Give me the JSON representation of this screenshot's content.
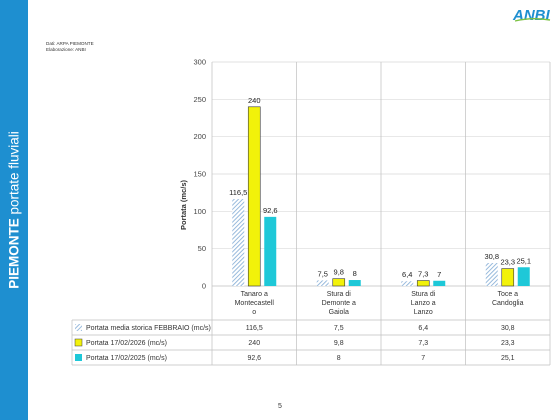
{
  "sidebar": {
    "title_bold": "PIEMONTE",
    "title_rest": "portate fluviali"
  },
  "source_note": {
    "line1": "Dati: ARPA PIEMONTE",
    "line2": "Elaborazione: ANBI"
  },
  "logo": {
    "text": "ANBI"
  },
  "page_number": "5",
  "colors": {
    "sidebar": "#1e8fd0",
    "historic": "#8db3d9",
    "y2026": "#f2f20a",
    "y2025": "#1ec8d8"
  },
  "chart_data": {
    "type": "bar",
    "title": "",
    "xlabel": "",
    "ylabel": "Portata (mc/s)",
    "ylim": [
      0,
      300
    ],
    "yticks": [
      0,
      50,
      100,
      150,
      200,
      250,
      300
    ],
    "grid": true,
    "legend": "data table below the chart",
    "categories": [
      [
        "Tanaro a",
        "Montecastell",
        "o"
      ],
      [
        "Stura di",
        "Demonte a",
        "Gaiola"
      ],
      [
        "Stura di",
        "Lanzo a",
        "Lanzo"
      ],
      [
        "Toce a",
        "Candoglia"
      ]
    ],
    "series": [
      {
        "name": "Portata media storica FEBBRAIO (mc/s)",
        "values": [
          116.5,
          7.5,
          6.4,
          30.8
        ],
        "labels": [
          "116,5",
          "7,5",
          "6,4",
          "30,8"
        ],
        "pattern": "hatch"
      },
      {
        "name": "Portata 17/02/2026 (mc/s)",
        "values": [
          240,
          9.8,
          7.3,
          23.3
        ],
        "labels": [
          "240",
          "9,8",
          "7,3",
          "23,3"
        ],
        "pattern": "solid"
      },
      {
        "name": "Portata 17/02/2025 (mc/s)",
        "values": [
          92.6,
          8,
          7,
          25.1
        ],
        "labels": [
          "92,6",
          "8",
          "7",
          "25,1"
        ],
        "pattern": "solid"
      }
    ]
  }
}
